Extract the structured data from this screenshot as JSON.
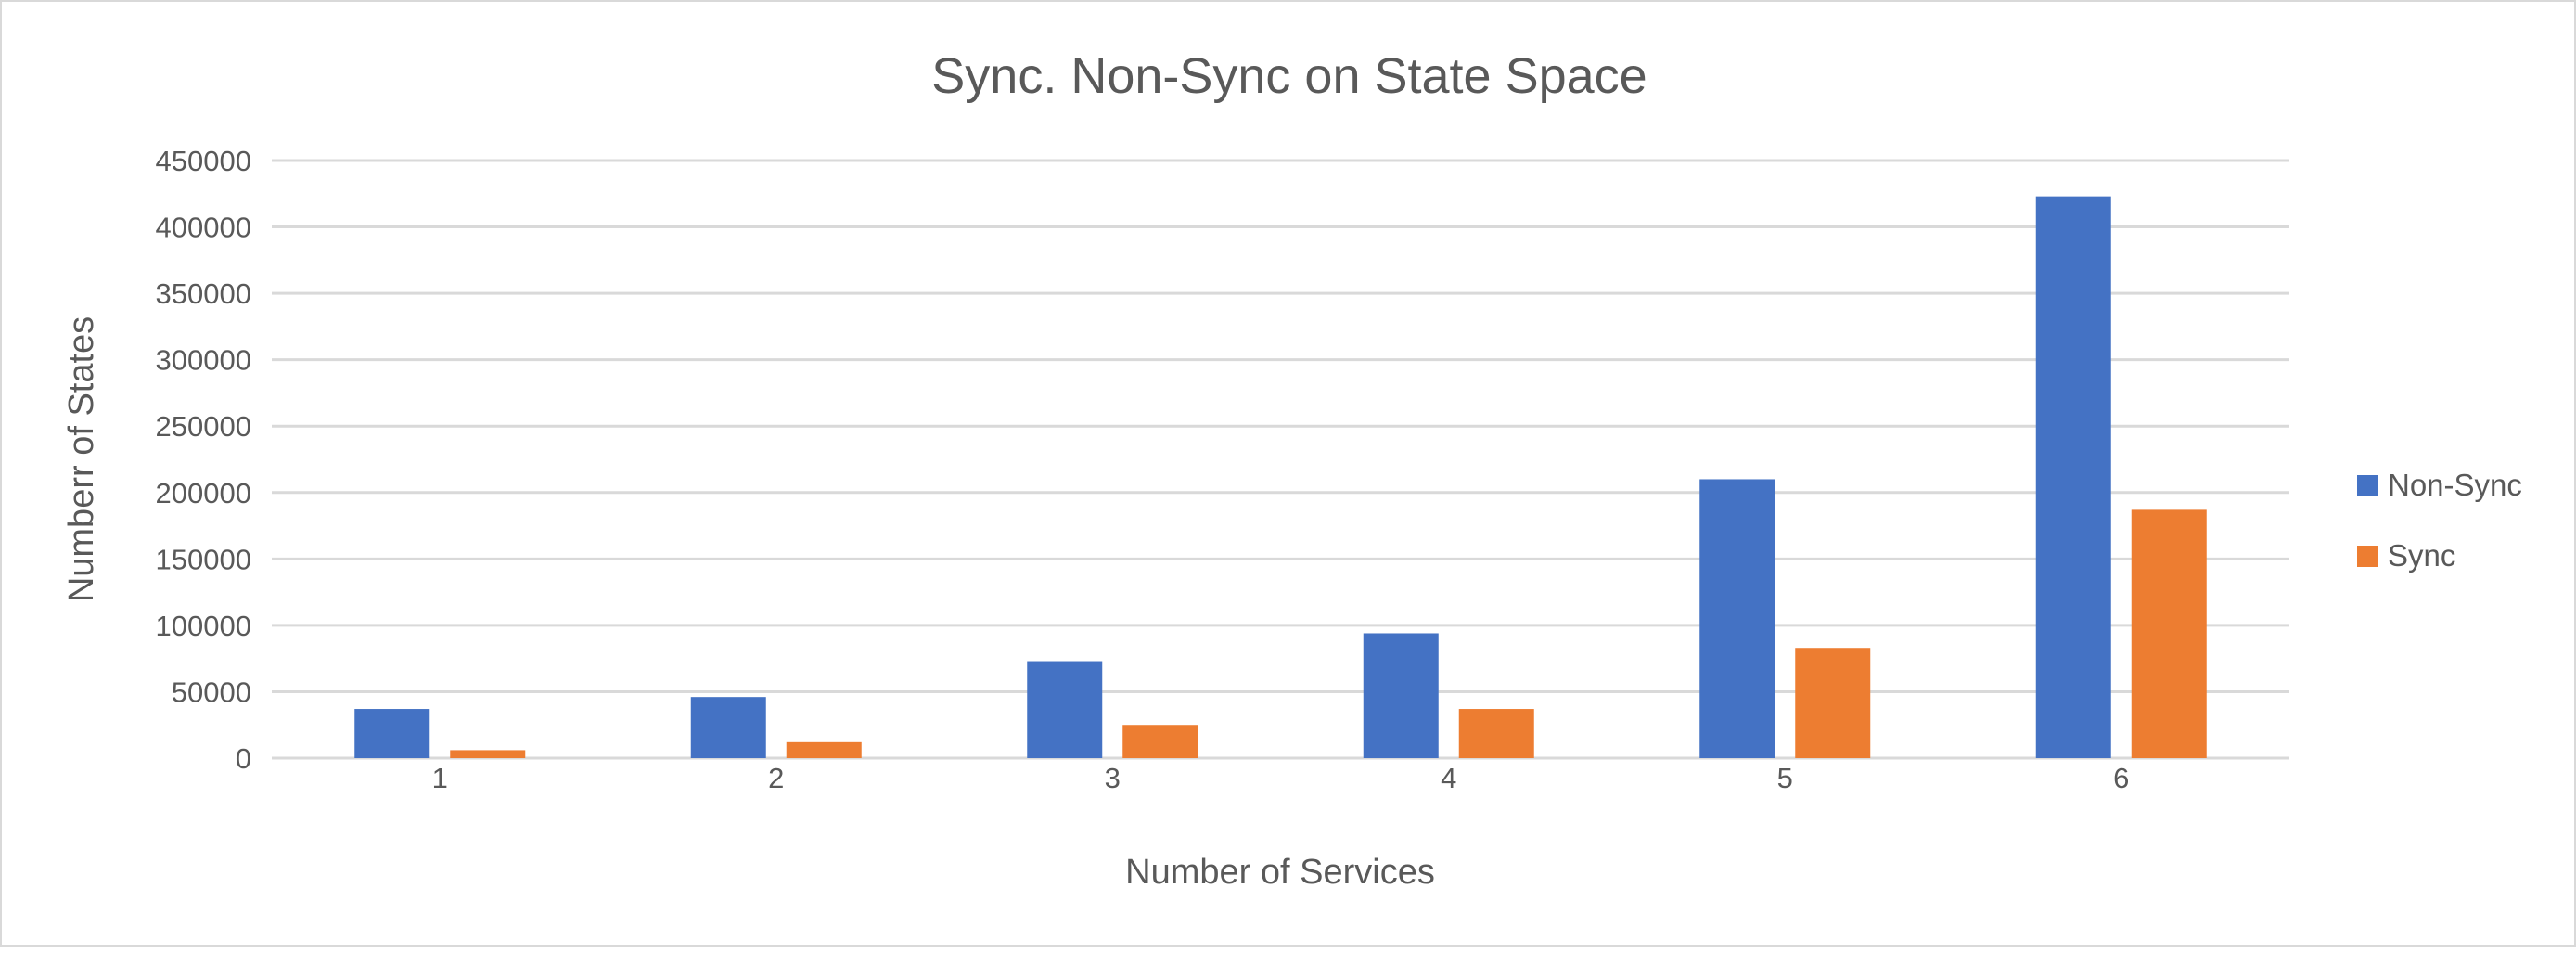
{
  "chart_data": {
    "type": "bar",
    "title": "Sync. Non-Sync on State Space",
    "xlabel": "Number of Services",
    "ylabel": "Numberr of States",
    "categories": [
      "1",
      "2",
      "3",
      "4",
      "5",
      "6"
    ],
    "series": [
      {
        "name": "Non-Sync",
        "color": "#4472C4",
        "values": [
          37000,
          46000,
          73000,
          94000,
          210000,
          423000
        ]
      },
      {
        "name": "Sync",
        "color": "#ED7D31",
        "values": [
          6000,
          12000,
          25000,
          37000,
          83000,
          187000
        ]
      }
    ],
    "ylim": [
      0,
      450000
    ],
    "yticks": [
      0,
      50000,
      100000,
      150000,
      200000,
      250000,
      300000,
      350000,
      400000,
      450000
    ],
    "grid": true,
    "gridColor": "#d9d9d9",
    "legend": "right"
  }
}
